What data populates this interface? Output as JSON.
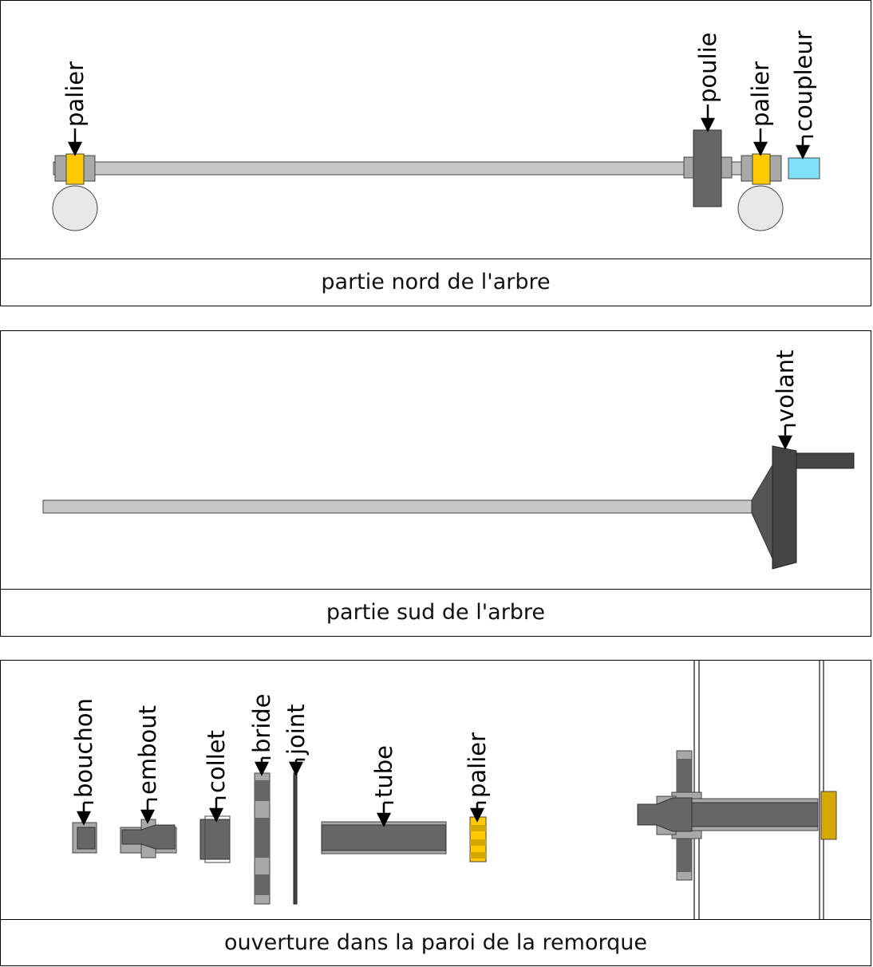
{
  "panels": [
    {
      "caption": "partie nord de l'arbre",
      "labels": {
        "palier_left": "palier",
        "poulie": "poulie",
        "palier_right": "palier",
        "coupleur": "coupleur"
      }
    },
    {
      "caption": "partie sud de l'arbre",
      "labels": {
        "volant": "volant"
      }
    },
    {
      "caption": "ouverture dans la paroi de la remorque",
      "labels": {
        "bouchon": "bouchon",
        "embout": "embout",
        "collet": "collet",
        "bride": "bride",
        "joint": "joint",
        "tube": "tube",
        "palier": "palier"
      }
    }
  ],
  "colors": {
    "shaft": "#c8c8c8",
    "dark_part": "#666666",
    "very_dark": "#444444",
    "bearing": "#ffc800",
    "bearing_dark": "#d4a800",
    "coupler": "#80e0f8",
    "wheel": "#e8e8e8",
    "grey_part": "#a8a8a8"
  }
}
